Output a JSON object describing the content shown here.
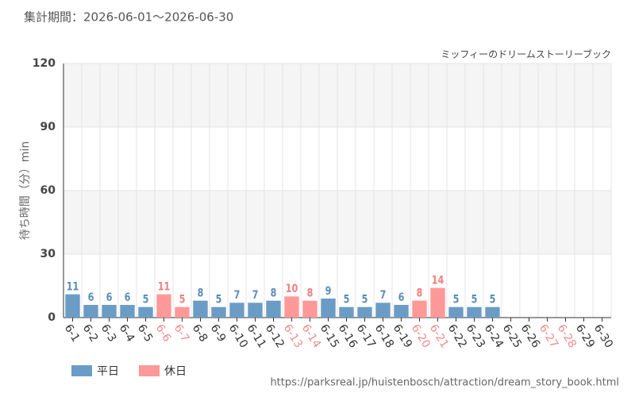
{
  "chart_data": {
    "type": "bar",
    "title": "集計期間：2026-06-01～2026-06-30",
    "subtitle": "ミッフィーのドリームストーリーブック",
    "y_label": "待ち時間（分）min",
    "source": "https://parksreal.jp/huistenbosch/attraction/dream_story_book.html",
    "categories": [
      "6-1",
      "6-2",
      "6-3",
      "6-4",
      "6-5",
      "6-6",
      "6-7",
      "6-8",
      "6-9",
      "6-10",
      "6-11",
      "6-12",
      "6-13",
      "6-14",
      "6-15",
      "6-16",
      "6-17",
      "6-18",
      "6-19",
      "6-20",
      "6-21",
      "6-22",
      "6-23",
      "6-24",
      "6-25",
      "6-26",
      "6-27",
      "6-28",
      "6-29",
      "6-30"
    ],
    "category_label_colors": [
      "#333",
      "#333",
      "#333",
      "#333",
      "#333",
      "#f28b8b",
      "#f28b8b",
      "#333",
      "#333",
      "#333",
      "#333",
      "#333",
      "#f28b8b",
      "#f28b8b",
      "#333",
      "#333",
      "#333",
      "#333",
      "#333",
      "#f28b8b",
      "#f28b8b",
      "#333",
      "#333",
      "#333",
      "#333",
      "#333",
      "#f28b8b",
      "#f28b8b",
      "#333",
      "#333"
    ],
    "series": [
      {
        "name": "平日",
        "color": "#6b9cc6",
        "label_color": "#5b8db8",
        "values": [
          11,
          6,
          6,
          6,
          5,
          null,
          null,
          8,
          5,
          7,
          7,
          8,
          null,
          null,
          9,
          5,
          5,
          7,
          6,
          null,
          null,
          5,
          5,
          5,
          null,
          null,
          null,
          null,
          null,
          null
        ]
      },
      {
        "name": "休日",
        "color": "#ff9999",
        "label_color": "#f28080",
        "values": [
          null,
          null,
          null,
          null,
          null,
          11,
          5,
          null,
          null,
          null,
          null,
          null,
          10,
          8,
          null,
          null,
          null,
          null,
          null,
          8,
          14,
          null,
          null,
          null,
          null,
          null,
          null,
          null,
          null,
          null
        ]
      }
    ],
    "ylim": [
      0,
      120
    ],
    "yticks": [
      0,
      30,
      60,
      90,
      120
    ],
    "grid": true
  }
}
